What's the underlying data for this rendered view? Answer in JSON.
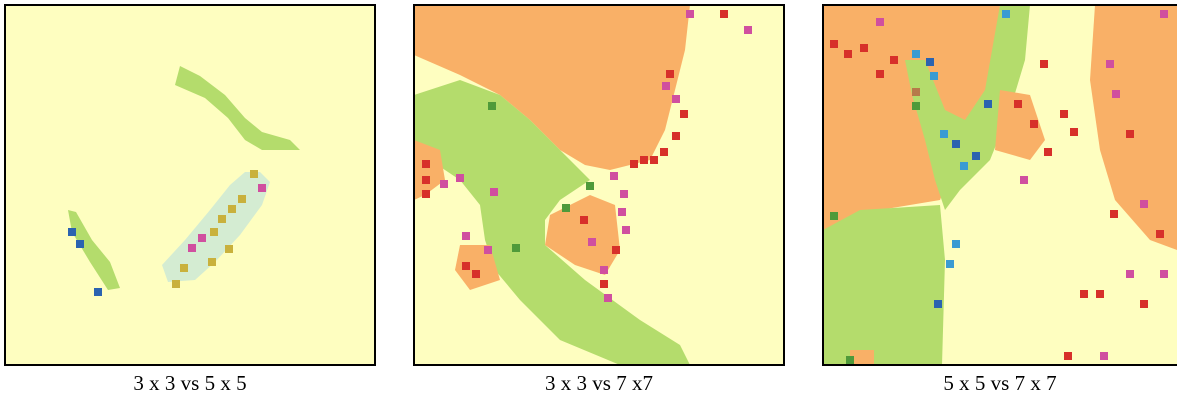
{
  "panels": [
    {
      "caption": "3 x 3 vs 5 x 5"
    },
    {
      "caption": "3 x 3 vs 7 x7"
    },
    {
      "caption": "5 x 5 vs 7 x 7"
    }
  ]
}
